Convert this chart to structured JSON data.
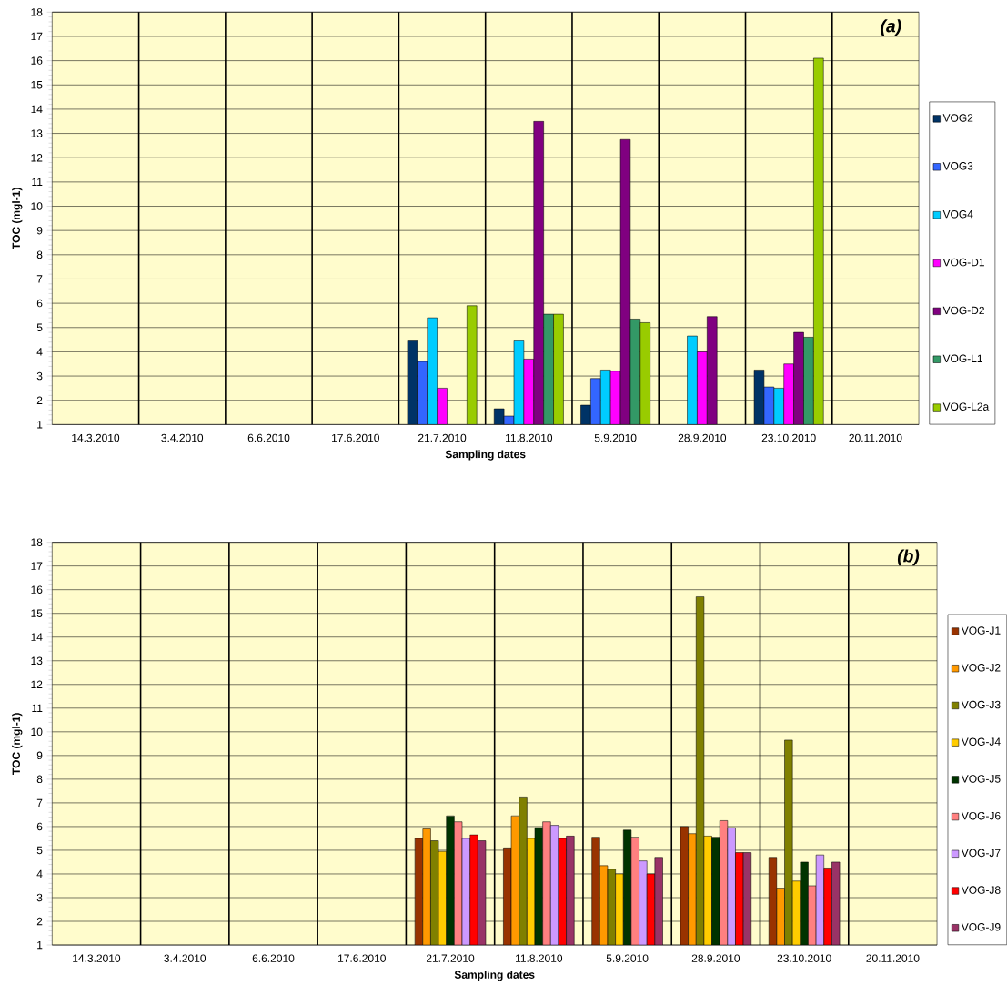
{
  "chart_data": [
    {
      "type": "bar",
      "title": "*(a)*",
      "xlabel": "Sampling dates",
      "ylabel": "TOC (mgl-1)",
      "categories": [
        "14.3.2010",
        "3.4.2010",
        "6.6.2010",
        "17.6.2010",
        "21.7.2010",
        "11.8.2010",
        "5.9.2010",
        "28.9.2010",
        "23.10.2010",
        "20.11.2010"
      ],
      "ylim": [
        1,
        18
      ],
      "yticks": [
        1,
        2,
        3,
        4,
        5,
        6,
        7,
        8,
        9,
        10,
        11,
        12,
        13,
        14,
        15,
        16,
        17,
        18
      ],
      "grid": true,
      "legend": "right",
      "series": [
        {
          "name": "VOG2",
          "color": "#003366",
          "values": [
            null,
            null,
            null,
            null,
            4.45,
            1.65,
            1.8,
            null,
            3.25,
            null
          ]
        },
        {
          "name": "VOG3",
          "color": "#3366ff",
          "values": [
            null,
            null,
            null,
            null,
            3.6,
            1.35,
            2.9,
            null,
            2.55,
            null
          ]
        },
        {
          "name": "VOG4",
          "color": "#00ccff",
          "values": [
            null,
            null,
            null,
            null,
            5.4,
            4.45,
            3.25,
            4.65,
            2.5,
            null
          ]
        },
        {
          "name": "VOG-D1",
          "color": "#ff00ff",
          "values": [
            null,
            null,
            null,
            null,
            2.5,
            3.7,
            3.2,
            4.0,
            3.5,
            null
          ]
        },
        {
          "name": "VOG-D2",
          "color": "#800080",
          "values": [
            null,
            null,
            null,
            null,
            null,
            13.5,
            12.75,
            5.45,
            4.8,
            null
          ]
        },
        {
          "name": "VOG-L1",
          "color": "#339966",
          "values": [
            null,
            null,
            null,
            null,
            null,
            5.55,
            5.35,
            null,
            4.6,
            null
          ]
        },
        {
          "name": "VOG-L2a",
          "color": "#99cc00",
          "values": [
            null,
            null,
            null,
            null,
            5.9,
            5.55,
            5.2,
            null,
            16.1,
            null
          ]
        }
      ]
    },
    {
      "type": "bar",
      "title": "*(b)*",
      "xlabel": "Sampling dates",
      "ylabel": "TOC (mgl-1)",
      "categories": [
        "14.3.2010",
        "3.4.2010",
        "6.6.2010",
        "17.6.2010",
        "21.7.2010",
        "11.8.2010",
        "5.9.2010",
        "28.9.2010",
        "23.10.2010",
        "20.11.2010"
      ],
      "ylim": [
        1,
        18
      ],
      "yticks": [
        1,
        2,
        3,
        4,
        5,
        6,
        7,
        8,
        9,
        10,
        11,
        12,
        13,
        14,
        15,
        16,
        17,
        18
      ],
      "grid": true,
      "legend": "right",
      "series": [
        {
          "name": "VOG-J1",
          "color": "#993300",
          "values": [
            null,
            null,
            null,
            null,
            5.5,
            5.1,
            5.55,
            6.0,
            4.7,
            null
          ]
        },
        {
          "name": "VOG-J2",
          "color": "#ff9900",
          "values": [
            null,
            null,
            null,
            null,
            5.9,
            6.45,
            4.35,
            5.7,
            3.4,
            null
          ]
        },
        {
          "name": "VOG-J3",
          "color": "#808000",
          "values": [
            null,
            null,
            null,
            null,
            5.4,
            7.25,
            4.2,
            15.7,
            9.65,
            null
          ]
        },
        {
          "name": "VOG-J4",
          "color": "#ffcc00",
          "values": [
            null,
            null,
            null,
            null,
            4.95,
            5.5,
            4.0,
            5.6,
            3.7,
            null
          ]
        },
        {
          "name": "VOG-J5",
          "color": "#003300",
          "values": [
            null,
            null,
            null,
            null,
            6.45,
            5.95,
            5.85,
            5.55,
            4.5,
            null
          ]
        },
        {
          "name": "VOG-J6",
          "color": "#ff8080",
          "values": [
            null,
            null,
            null,
            null,
            6.2,
            6.2,
            5.55,
            6.25,
            3.5,
            null
          ]
        },
        {
          "name": "VOG-J7",
          "color": "#cc99ff",
          "values": [
            null,
            null,
            null,
            null,
            5.5,
            6.05,
            4.55,
            5.95,
            4.8,
            null
          ]
        },
        {
          "name": "VOG-J8",
          "color": "#ff0000",
          "values": [
            null,
            null,
            null,
            null,
            5.65,
            5.5,
            4.0,
            4.9,
            4.25,
            null
          ]
        },
        {
          "name": "VOG-J9",
          "color": "#993366",
          "values": [
            null,
            null,
            null,
            null,
            5.4,
            5.6,
            4.7,
            4.9,
            4.5,
            null
          ]
        }
      ]
    }
  ]
}
